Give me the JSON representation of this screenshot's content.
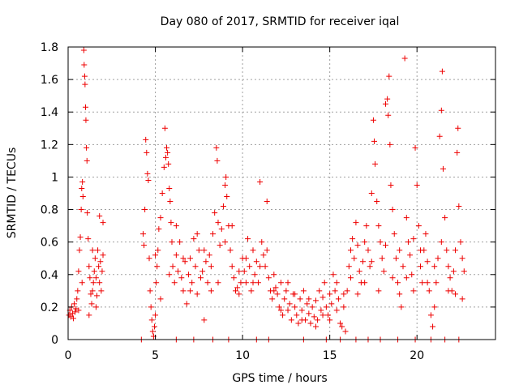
{
  "chart_data": {
    "type": "scatter",
    "title": "Day 080 of 2017, SRMTID for receiver iqal",
    "xlabel": "GPS time / hours",
    "ylabel": "SRMTID / TECUs",
    "xlim": [
      0,
      24.5
    ],
    "ylim": [
      0,
      1.8
    ],
    "xticks": [
      0,
      5,
      10,
      15,
      20
    ],
    "xtick_labels": [
      "0",
      "5",
      "10",
      "15",
      "20"
    ],
    "yticks": [
      0,
      0.2,
      0.4,
      0.6,
      0.8,
      1.0,
      1.2,
      1.4,
      1.6,
      1.8
    ],
    "ytick_labels": [
      "0",
      "0.2",
      "0.4",
      "0.6",
      "0.8",
      "1",
      "1.2",
      "1.4",
      "1.6",
      "1.8"
    ],
    "grid": true,
    "marker": "plus",
    "color": "#ee0000",
    "series": [
      {
        "name": "SRMTID",
        "points": [
          [
            0.05,
            0.15
          ],
          [
            0.1,
            0.18
          ],
          [
            0.15,
            0.14
          ],
          [
            0.2,
            0.2
          ],
          [
            0.25,
            0.16
          ],
          [
            0.3,
            0.13
          ],
          [
            0.35,
            0.22
          ],
          [
            0.4,
            0.17
          ],
          [
            0.45,
            0.19
          ],
          [
            0.5,
            0.25
          ],
          [
            0.55,
            0.3
          ],
          [
            0.6,
            0.42
          ],
          [
            0.65,
            0.55
          ],
          [
            0.7,
            0.63
          ],
          [
            0.75,
            0.8
          ],
          [
            0.78,
            0.93
          ],
          [
            0.82,
            0.97
          ],
          [
            0.85,
            0.88
          ],
          [
            0.9,
            1.78
          ],
          [
            0.92,
            1.69
          ],
          [
            0.95,
            1.62
          ],
          [
            0.97,
            1.57
          ],
          [
            1.0,
            1.43
          ],
          [
            1.02,
            1.35
          ],
          [
            1.05,
            1.18
          ],
          [
            1.08,
            1.1
          ],
          [
            1.1,
            0.78
          ],
          [
            1.15,
            0.62
          ],
          [
            1.2,
            0.45
          ],
          [
            1.25,
            0.38
          ],
          [
            1.3,
            0.28
          ],
          [
            1.35,
            0.22
          ],
          [
            1.4,
            0.3
          ],
          [
            1.45,
            0.35
          ],
          [
            1.5,
            0.42
          ],
          [
            1.55,
            0.5
          ],
          [
            1.6,
            0.38
          ],
          [
            1.65,
            0.27
          ],
          [
            1.7,
            0.55
          ],
          [
            1.75,
            0.45
          ],
          [
            1.8,
            0.35
          ],
          [
            1.85,
            0.48
          ],
          [
            1.9,
            0.3
          ],
          [
            1.95,
            0.42
          ],
          [
            2.0,
            0.52
          ],
          [
            0.6,
            0.18
          ],
          [
            0.8,
            0.35
          ],
          [
            1.2,
            0.15
          ],
          [
            1.4,
            0.55
          ],
          [
            1.8,
            0.76
          ],
          [
            2.0,
            0.72
          ],
          [
            1.6,
            0.2
          ],
          [
            4.2,
            0.0
          ],
          [
            4.3,
            0.65
          ],
          [
            4.35,
            0.58
          ],
          [
            4.4,
            0.8
          ],
          [
            4.45,
            1.23
          ],
          [
            4.5,
            1.15
          ],
          [
            4.55,
            1.02
          ],
          [
            4.6,
            0.98
          ],
          [
            4.65,
            0.5
          ],
          [
            4.7,
            0.3
          ],
          [
            4.75,
            0.2
          ],
          [
            4.8,
            0.12
          ],
          [
            4.85,
            0.05
          ],
          [
            4.9,
            0.02
          ],
          [
            4.95,
            0.08
          ],
          [
            5.0,
            0.15
          ],
          [
            5.05,
            0.35
          ],
          [
            5.1,
            0.45
          ],
          [
            5.15,
            0.55
          ],
          [
            5.2,
            0.68
          ],
          [
            5.3,
            0.75
          ],
          [
            5.4,
            0.9
          ],
          [
            5.5,
            1.06
          ],
          [
            5.55,
            1.3
          ],
          [
            5.6,
            1.12
          ],
          [
            5.65,
            1.18
          ],
          [
            5.7,
            1.15
          ],
          [
            5.75,
            1.08
          ],
          [
            5.8,
            0.93
          ],
          [
            5.85,
            0.85
          ],
          [
            5.9,
            0.72
          ],
          [
            5.95,
            0.6
          ],
          [
            6.0,
            0.45
          ],
          [
            6.1,
            0.35
          ],
          [
            6.2,
            0.52
          ],
          [
            6.3,
            0.42
          ],
          [
            6.4,
            0.6
          ],
          [
            6.5,
            0.38
          ],
          [
            6.6,
            0.3
          ],
          [
            6.7,
            0.48
          ],
          [
            6.8,
            0.22
          ],
          [
            6.9,
            0.4
          ],
          [
            7.0,
            0.5
          ],
          [
            7.1,
            0.35
          ],
          [
            7.2,
            0.62
          ],
          [
            7.3,
            0.45
          ],
          [
            7.4,
            0.28
          ],
          [
            7.5,
            0.55
          ],
          [
            7.6,
            0.38
          ],
          [
            7.7,
            0.42
          ],
          [
            7.8,
            0.12
          ],
          [
            7.9,
            0.48
          ],
          [
            8.0,
            0.35
          ],
          [
            8.1,
            0.52
          ],
          [
            8.2,
            0.3
          ],
          [
            8.3,
            0.65
          ],
          [
            8.4,
            0.78
          ],
          [
            8.5,
            1.18
          ],
          [
            8.55,
            1.1
          ],
          [
            8.6,
            0.72
          ],
          [
            8.7,
            0.58
          ],
          [
            8.8,
            0.68
          ],
          [
            8.9,
            0.82
          ],
          [
            9.0,
            0.95
          ],
          [
            9.05,
            1.0
          ],
          [
            9.1,
            0.88
          ],
          [
            9.2,
            0.7
          ],
          [
            9.3,
            0.55
          ],
          [
            9.4,
            0.45
          ],
          [
            9.5,
            0.38
          ],
          [
            9.6,
            0.3
          ],
          [
            9.7,
            0.32
          ],
          [
            9.8,
            0.28
          ],
          [
            9.9,
            0.35
          ],
          [
            10.0,
            0.5
          ],
          [
            10.1,
            0.42
          ],
          [
            10.2,
            0.35
          ],
          [
            10.3,
            0.62
          ],
          [
            10.4,
            0.45
          ],
          [
            10.5,
            0.3
          ],
          [
            10.6,
            0.55
          ],
          [
            10.7,
            0.4
          ],
          [
            10.8,
            0.48
          ],
          [
            10.9,
            0.35
          ],
          [
            11.0,
            0.97
          ],
          [
            11.1,
            0.6
          ],
          [
            11.2,
            0.52
          ],
          [
            11.3,
            0.45
          ],
          [
            11.4,
            0.85
          ],
          [
            11.5,
            0.38
          ],
          [
            11.6,
            0.3
          ],
          [
            11.7,
            0.25
          ],
          [
            11.8,
            0.4
          ],
          [
            11.9,
            0.32
          ],
          [
            12.0,
            0.28
          ],
          [
            12.1,
            0.2
          ],
          [
            12.2,
            0.35
          ],
          [
            12.3,
            0.15
          ],
          [
            12.4,
            0.25
          ],
          [
            12.5,
            0.3
          ],
          [
            12.6,
            0.18
          ],
          [
            12.7,
            0.22
          ],
          [
            12.8,
            0.12
          ],
          [
            12.9,
            0.28
          ],
          [
            13.0,
            0.2
          ],
          [
            13.1,
            0.15
          ],
          [
            13.2,
            0.1
          ],
          [
            13.3,
            0.25
          ],
          [
            13.4,
            0.18
          ],
          [
            13.5,
            0.3
          ],
          [
            13.6,
            0.12
          ],
          [
            13.7,
            0.22
          ],
          [
            13.8,
            0.16
          ],
          [
            13.9,
            0.1
          ],
          [
            14.0,
            0.2
          ],
          [
            14.1,
            0.14
          ],
          [
            14.2,
            0.24
          ],
          [
            14.3,
            0.12
          ],
          [
            14.4,
            0.3
          ],
          [
            14.5,
            0.18
          ],
          [
            14.6,
            0.26
          ],
          [
            14.7,
            0.35
          ],
          [
            14.8,
            0.2
          ],
          [
            14.9,
            0.15
          ],
          [
            15.0,
            0.28
          ],
          [
            15.1,
            0.22
          ],
          [
            15.2,
            0.4
          ],
          [
            15.3,
            0.3
          ],
          [
            15.4,
            0.18
          ],
          [
            15.5,
            0.25
          ],
          [
            15.6,
            0.1
          ],
          [
            15.7,
            0.08
          ],
          [
            15.8,
            0.2
          ],
          [
            15.9,
            0.05
          ],
          [
            16.0,
            0.3
          ],
          [
            16.1,
            0.45
          ],
          [
            16.2,
            0.55
          ],
          [
            16.3,
            0.62
          ],
          [
            16.4,
            0.5
          ],
          [
            16.5,
            0.72
          ],
          [
            16.6,
            0.58
          ],
          [
            16.7,
            0.42
          ],
          [
            16.8,
            0.35
          ],
          [
            16.9,
            0.48
          ],
          [
            17.0,
            0.6
          ],
          [
            17.1,
            0.7
          ],
          [
            17.2,
            0.55
          ],
          [
            17.3,
            0.45
          ],
          [
            17.4,
            0.9
          ],
          [
            17.5,
            1.35
          ],
          [
            17.55,
            1.22
          ],
          [
            17.6,
            1.08
          ],
          [
            17.7,
            0.85
          ],
          [
            17.8,
            0.7
          ],
          [
            17.9,
            0.6
          ],
          [
            18.0,
            0.5
          ],
          [
            18.1,
            0.42
          ],
          [
            18.2,
            1.45
          ],
          [
            18.3,
            1.48
          ],
          [
            18.35,
            1.38
          ],
          [
            18.4,
            1.62
          ],
          [
            18.45,
            1.2
          ],
          [
            18.5,
            0.95
          ],
          [
            18.6,
            0.8
          ],
          [
            18.7,
            0.65
          ],
          [
            18.8,
            0.5
          ],
          [
            18.9,
            0.35
          ],
          [
            19.0,
            0.28
          ],
          [
            19.1,
            0.2
          ],
          [
            19.2,
            0.45
          ],
          [
            19.3,
            1.73
          ],
          [
            19.4,
            0.75
          ],
          [
            19.5,
            0.6
          ],
          [
            19.6,
            0.52
          ],
          [
            19.7,
            0.4
          ],
          [
            19.8,
            0.3
          ],
          [
            19.9,
            1.18
          ],
          [
            20.0,
            0.95
          ],
          [
            20.1,
            0.7
          ],
          [
            20.2,
            0.45
          ],
          [
            20.3,
            0.35
          ],
          [
            20.4,
            0.55
          ],
          [
            20.5,
            0.65
          ],
          [
            20.6,
            0.48
          ],
          [
            20.7,
            0.3
          ],
          [
            20.8,
            0.15
          ],
          [
            20.9,
            0.08
          ],
          [
            21.0,
            0.2
          ],
          [
            21.1,
            0.35
          ],
          [
            21.2,
            0.5
          ],
          [
            21.3,
            1.25
          ],
          [
            21.4,
            1.41
          ],
          [
            21.45,
            1.65
          ],
          [
            21.5,
            1.05
          ],
          [
            21.6,
            0.75
          ],
          [
            21.7,
            0.55
          ],
          [
            21.8,
            0.45
          ],
          [
            21.9,
            0.38
          ],
          [
            22.0,
            0.3
          ],
          [
            22.1,
            0.42
          ],
          [
            22.2,
            0.55
          ],
          [
            22.3,
            1.15
          ],
          [
            22.35,
            1.3
          ],
          [
            22.4,
            0.82
          ],
          [
            22.5,
            0.6
          ],
          [
            22.6,
            0.5
          ],
          [
            22.7,
            0.42
          ],
          [
            5.0,
            0.52
          ],
          [
            5.3,
            0.25
          ],
          [
            5.8,
            0.4
          ],
          [
            6.2,
            0.7
          ],
          [
            6.6,
            0.5
          ],
          [
            7.0,
            0.3
          ],
          [
            7.4,
            0.65
          ],
          [
            7.8,
            0.55
          ],
          [
            8.2,
            0.45
          ],
          [
            8.6,
            0.35
          ],
          [
            9.0,
            0.6
          ],
          [
            9.4,
            0.7
          ],
          [
            9.8,
            0.42
          ],
          [
            10.2,
            0.5
          ],
          [
            10.6,
            0.35
          ],
          [
            11.0,
            0.45
          ],
          [
            11.4,
            0.55
          ],
          [
            11.8,
            0.3
          ],
          [
            12.2,
            0.18
          ],
          [
            12.6,
            0.35
          ],
          [
            13.0,
            0.28
          ],
          [
            13.4,
            0.12
          ],
          [
            13.8,
            0.25
          ],
          [
            14.2,
            0.08
          ],
          [
            14.6,
            0.15
          ],
          [
            15.0,
            0.12
          ],
          [
            15.4,
            0.35
          ],
          [
            15.8,
            0.28
          ],
          [
            16.2,
            0.38
          ],
          [
            16.6,
            0.28
          ],
          [
            17.0,
            0.35
          ],
          [
            17.4,
            0.48
          ],
          [
            17.8,
            0.3
          ],
          [
            18.2,
            0.58
          ],
          [
            18.6,
            0.38
          ],
          [
            19.0,
            0.55
          ],
          [
            19.4,
            0.38
          ],
          [
            19.8,
            0.62
          ],
          [
            20.2,
            0.55
          ],
          [
            20.6,
            0.35
          ],
          [
            21.0,
            0.45
          ],
          [
            21.4,
            0.6
          ],
          [
            21.8,
            0.3
          ],
          [
            22.2,
            0.28
          ],
          [
            22.6,
            0.25
          ],
          [
            6.2,
            0.0
          ],
          [
            7.2,
            0.0
          ],
          [
            8.3,
            0.0
          ],
          [
            9.2,
            0.0
          ],
          [
            10.8,
            0.0
          ],
          [
            11.5,
            0.0
          ],
          [
            13.5,
            0.0
          ],
          [
            14.8,
            0.0
          ],
          [
            15.6,
            0.0
          ],
          [
            16.5,
            0.0
          ],
          [
            17.2,
            0.0
          ],
          [
            17.9,
            0.0
          ],
          [
            18.9,
            0.0
          ],
          [
            19.9,
            0.0
          ],
          [
            20.8,
            0.0
          ],
          [
            21.6,
            0.0
          ],
          [
            22.4,
            0.0
          ]
        ]
      }
    ]
  }
}
